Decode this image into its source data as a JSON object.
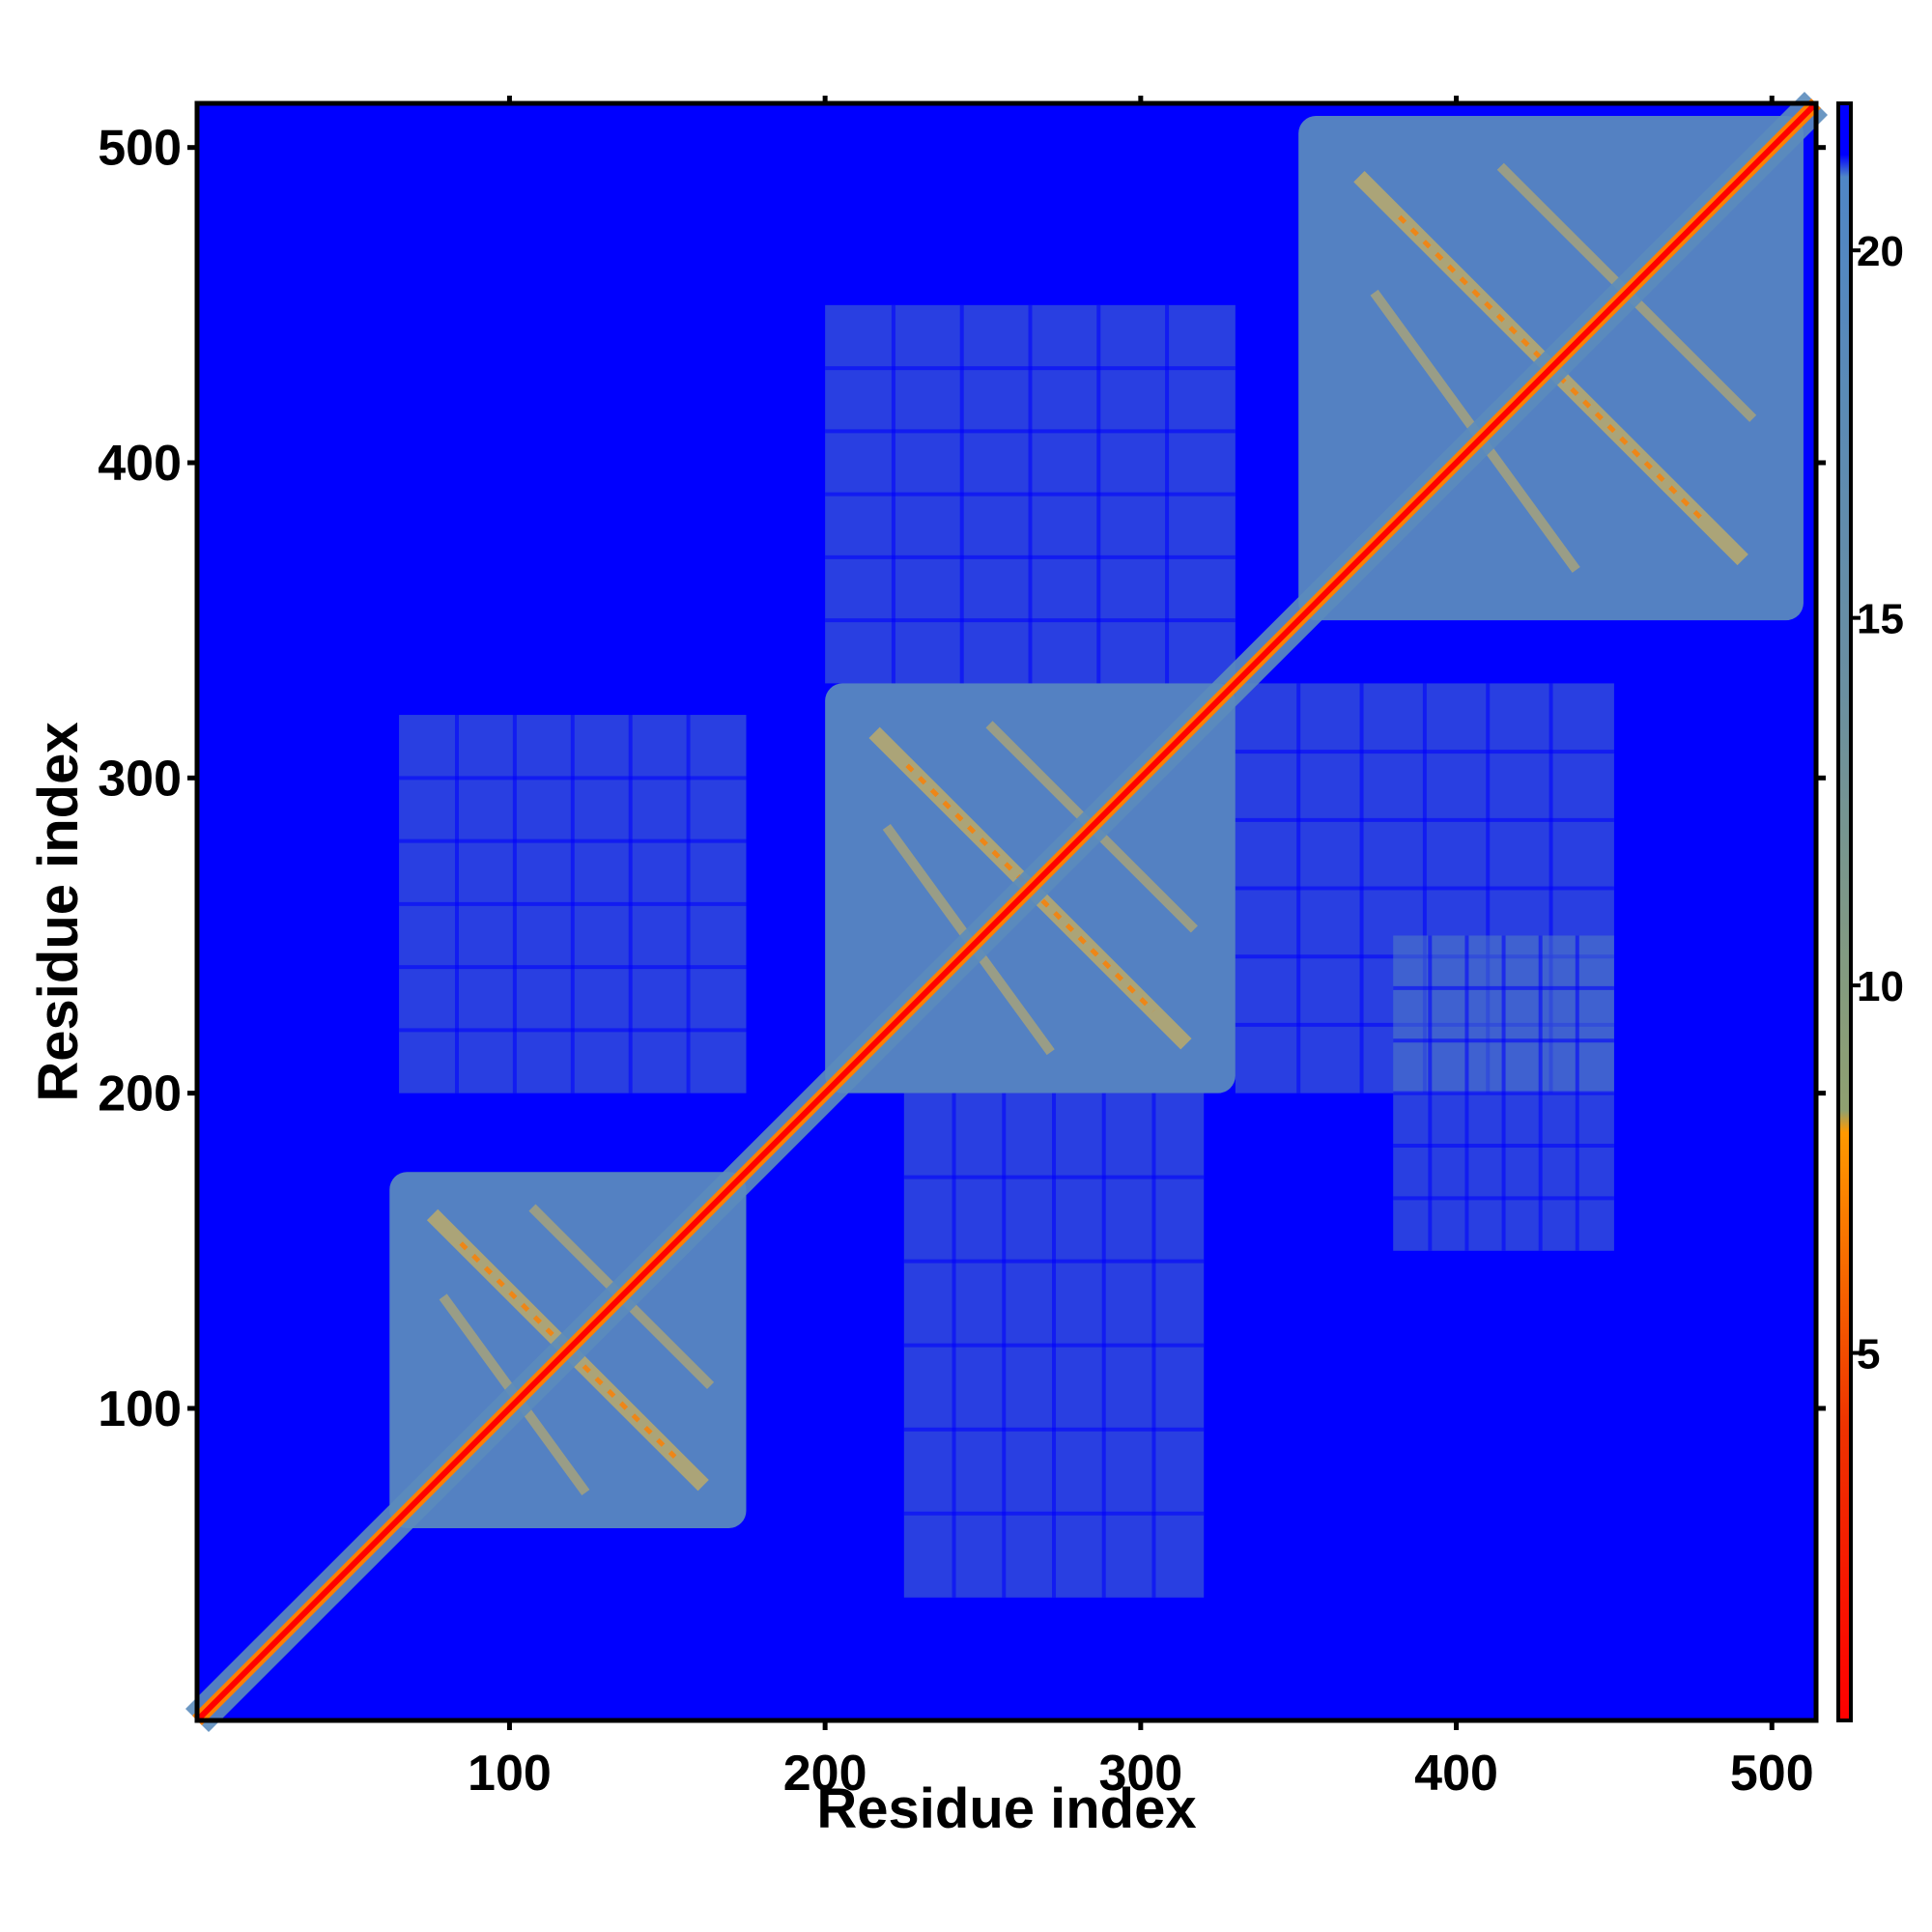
{
  "chart_data": {
    "type": "heatmap",
    "title": "",
    "xlabel": "Residue index",
    "ylabel": "Residue index",
    "xlim": [
      1,
      514
    ],
    "ylim": [
      1,
      514
    ],
    "x_ticks": [
      100,
      200,
      300,
      400,
      500
    ],
    "y_ticks": [
      100,
      200,
      300,
      400,
      500
    ],
    "colorbar": {
      "ticks": [
        5,
        10,
        15,
        20
      ],
      "range": [
        0,
        22
      ],
      "stops": [
        {
          "value": 0,
          "color": "#ff0000"
        },
        {
          "value": 4,
          "color": "#ee3300"
        },
        {
          "value": 8,
          "color": "#ff9900"
        },
        {
          "value": 8.3,
          "color": "#8fa070"
        },
        {
          "value": 14,
          "color": "#6a8fa0"
        },
        {
          "value": 21,
          "color": "#4f86c6"
        },
        {
          "value": 21.3,
          "color": "#0000ff"
        },
        {
          "value": 22,
          "color": "#0000ff"
        }
      ]
    },
    "colors": {
      "background_far": "#0000ff",
      "contact_mid": "#5b8cbd",
      "contact_near": "#c8b060",
      "contact_close": "#ff7f00",
      "diagonal": "#ff0000"
    },
    "blocks": [
      {
        "x": [
          62,
          175
        ],
        "y": [
          62,
          175
        ],
        "level": "mid"
      },
      {
        "x": [
          200,
          330
        ],
        "y": [
          200,
          330
        ],
        "level": "mid"
      },
      {
        "x": [
          350,
          510
        ],
        "y": [
          350,
          510
        ],
        "level": "mid"
      },
      {
        "x": [
          65,
          175
        ],
        "y": [
          200,
          320
        ],
        "level": "sparse"
      },
      {
        "x": [
          225,
          320
        ],
        "y": [
          40,
          200
        ],
        "level": "sparse"
      },
      {
        "x": [
          200,
          330
        ],
        "y": [
          330,
          450
        ],
        "level": "sparse"
      },
      {
        "x": [
          330,
          450
        ],
        "y": [
          200,
          330
        ],
        "level": "sparse"
      },
      {
        "x": [
          380,
          450
        ],
        "y": [
          150,
          250
        ],
        "level": "sparse"
      }
    ]
  }
}
